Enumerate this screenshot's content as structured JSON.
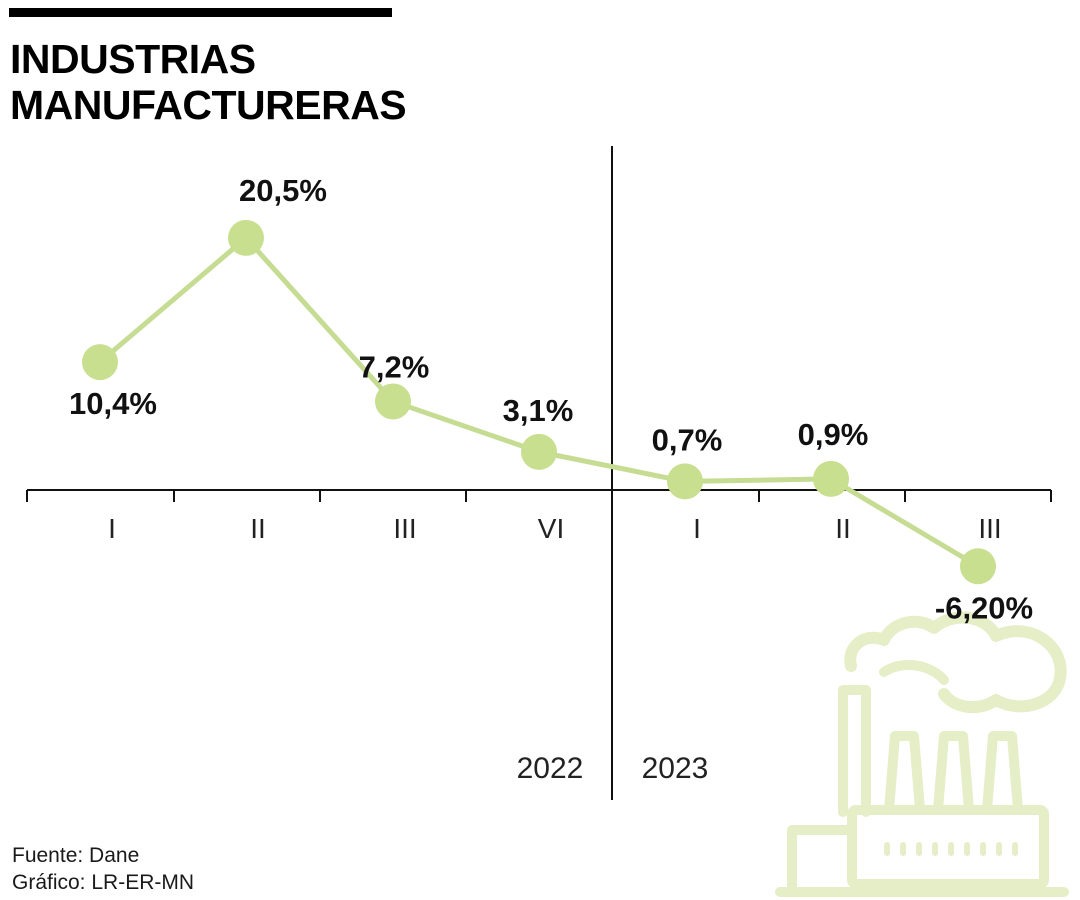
{
  "title_lines": [
    "INDUSTRIAS",
    "MANUFACTURERAS"
  ],
  "source_lines": [
    "Fuente: Dane",
    "Gráfico: LR-ER-MN"
  ],
  "colors": {
    "line": "#c5dc92",
    "marker": "#c8df8f",
    "factory": "#e6eec8",
    "axis": "#111111"
  },
  "icons": [
    "factory-icon"
  ],
  "chart_data": {
    "type": "line",
    "title": "INDUSTRIAS MANUFACTURERAS",
    "categories": [
      "I",
      "II",
      "III",
      "VI",
      "I",
      "II",
      "III"
    ],
    "periods": [
      {
        "label": "2022",
        "categories": [
          "I",
          "II",
          "III",
          "VI"
        ]
      },
      {
        "label": "2023",
        "categories": [
          "I",
          "II",
          "III"
        ]
      }
    ],
    "series": [
      {
        "values": [
          10.4,
          20.5,
          7.2,
          3.1,
          0.7,
          0.9,
          -6.2
        ]
      }
    ],
    "data_labels": [
      "10,4%",
      "20,5%",
      "7,2%",
      "3,1%",
      "0,7%",
      "0,9%",
      "-6,20%"
    ],
    "ylim": [
      -25,
      30
    ],
    "grid": false,
    "legend": false
  }
}
